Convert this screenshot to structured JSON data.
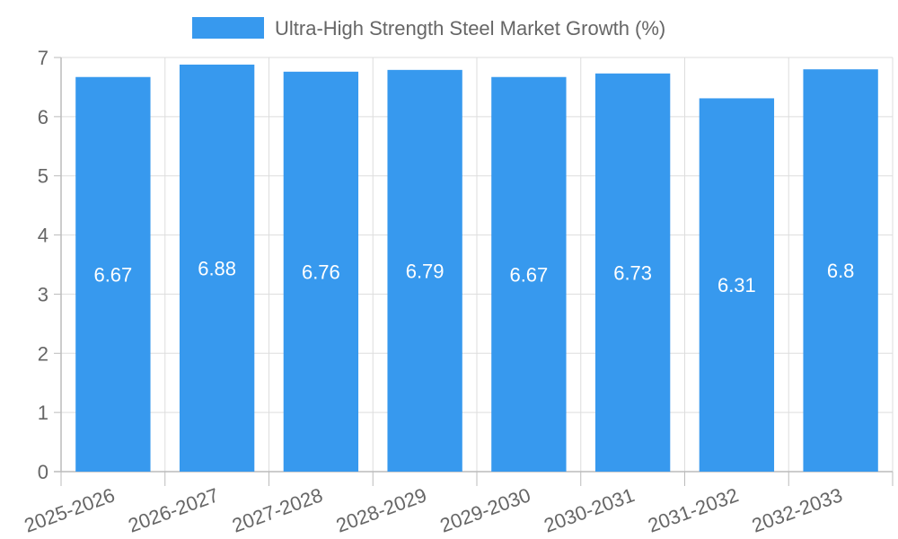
{
  "chart_data": {
    "type": "bar",
    "categories": [
      "2025-2026",
      "2026-2027",
      "2027-2028",
      "2028-2029",
      "2029-2030",
      "2030-2031",
      "2031-2032",
      "2032-2033"
    ],
    "series": [
      {
        "name": "Ultra-High Strength Steel Market Growth (%)",
        "values": [
          6.67,
          6.88,
          6.76,
          6.79,
          6.67,
          6.73,
          6.31,
          6.8
        ],
        "color": "#3799EE"
      }
    ],
    "ylim": [
      0,
      7
    ],
    "yticks": [
      0,
      1,
      2,
      3,
      4,
      5,
      6,
      7
    ],
    "grid": true,
    "legend": "top-center",
    "data_labels": true,
    "x_tick_rotation": -20
  }
}
